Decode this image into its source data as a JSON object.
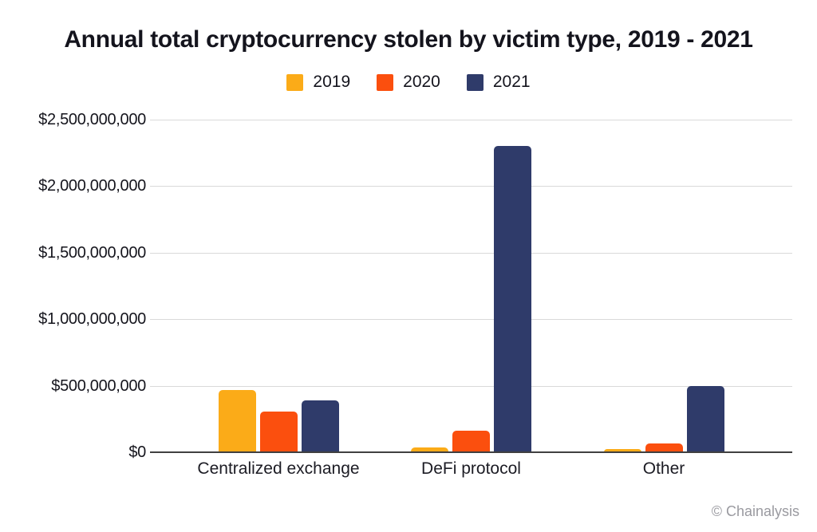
{
  "footer": {
    "credit": "© Chainalysis"
  },
  "colors": {
    "series_2019": "#FBAB18",
    "series_2020": "#FB4F0E",
    "series_2021": "#2F3B6A",
    "gridline": "#d9d9d9",
    "axis_line": "#404040",
    "title_text": "#14141d",
    "credit_text": "#9a9aa0"
  },
  "chart_data": {
    "type": "bar",
    "title": "Annual total cryptocurrency stolen by victim type, 2019 - 2021",
    "categories": [
      "Centralized exchange",
      "DeFi protocol",
      "Other"
    ],
    "series": [
      {
        "name": "2019",
        "color": "#FBAB18",
        "values": [
          470000000,
          35000000,
          25000000
        ]
      },
      {
        "name": "2020",
        "color": "#FB4F0E",
        "values": [
          305000000,
          160000000,
          65000000
        ]
      },
      {
        "name": "2021",
        "color": "#2F3B6A",
        "values": [
          390000000,
          2300000000,
          500000000
        ]
      }
    ],
    "xlabel": "",
    "ylabel": "",
    "ylim": [
      0,
      2500000000
    ],
    "ytick_interval": 500000000,
    "ytick_labels": [
      "$0",
      "$500,000,000",
      "$1,000,000,000",
      "$1,500,000,000",
      "$2,000,000,000",
      "$2,500,000,000"
    ],
    "grid": "horizontal",
    "legend_position": "top"
  }
}
